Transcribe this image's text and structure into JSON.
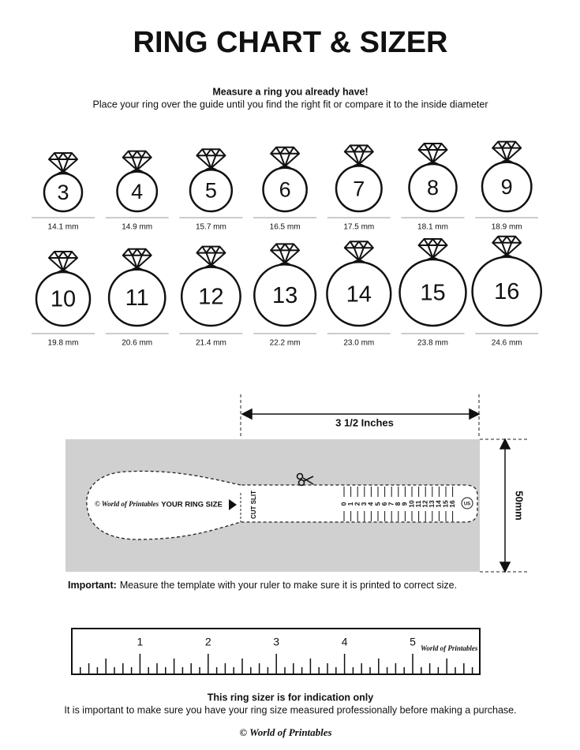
{
  "title": "RING CHART & SIZER",
  "intro": {
    "heading": "Measure a ring you already have!",
    "text": "Place your ring over the guide until you find the right fit or compare it to the inside diameter"
  },
  "rings": [
    {
      "size": "3",
      "diameter": "14.1 mm"
    },
    {
      "size": "4",
      "diameter": "14.9 mm"
    },
    {
      "size": "5",
      "diameter": "15.7 mm"
    },
    {
      "size": "6",
      "diameter": "16.5 mm"
    },
    {
      "size": "7",
      "diameter": "17.5 mm"
    },
    {
      "size": "8",
      "diameter": "18.1 mm"
    },
    {
      "size": "9",
      "diameter": "18.9 mm"
    },
    {
      "size": "10",
      "diameter": "19.8 mm"
    },
    {
      "size": "11",
      "diameter": "20.6 mm"
    },
    {
      "size": "12",
      "diameter": "21.4 mm"
    },
    {
      "size": "13",
      "diameter": "22.2 mm"
    },
    {
      "size": "14",
      "diameter": "23.0 mm"
    },
    {
      "size": "15",
      "diameter": "23.8 mm"
    },
    {
      "size": "16",
      "diameter": "24.6 mm"
    }
  ],
  "sizer": {
    "width_label": "3 1/2 Inches",
    "height_label": "50mm",
    "brand": "© World of Printables",
    "your_ring_size": "YOUR RING SIZE",
    "cut_slit": "CUT SLIT",
    "scale": [
      "0",
      "1",
      "2",
      "3",
      "4",
      "5",
      "6",
      "7",
      "8",
      "9",
      "10",
      "11",
      "12",
      "13",
      "14",
      "15",
      "16"
    ],
    "region": "US"
  },
  "important": {
    "label": "Important:",
    "text": "Measure the template with your ruler to make sure it is printed to correct size."
  },
  "ruler": {
    "numbers": [
      "1",
      "2",
      "3",
      "4",
      "5"
    ],
    "brand": "World of Printables"
  },
  "footer": {
    "heading": "This ring sizer is for indication only",
    "text": "It is important to make sure you have your ring size measured professionally before making a purchase.",
    "brand": "© World of Printables"
  }
}
